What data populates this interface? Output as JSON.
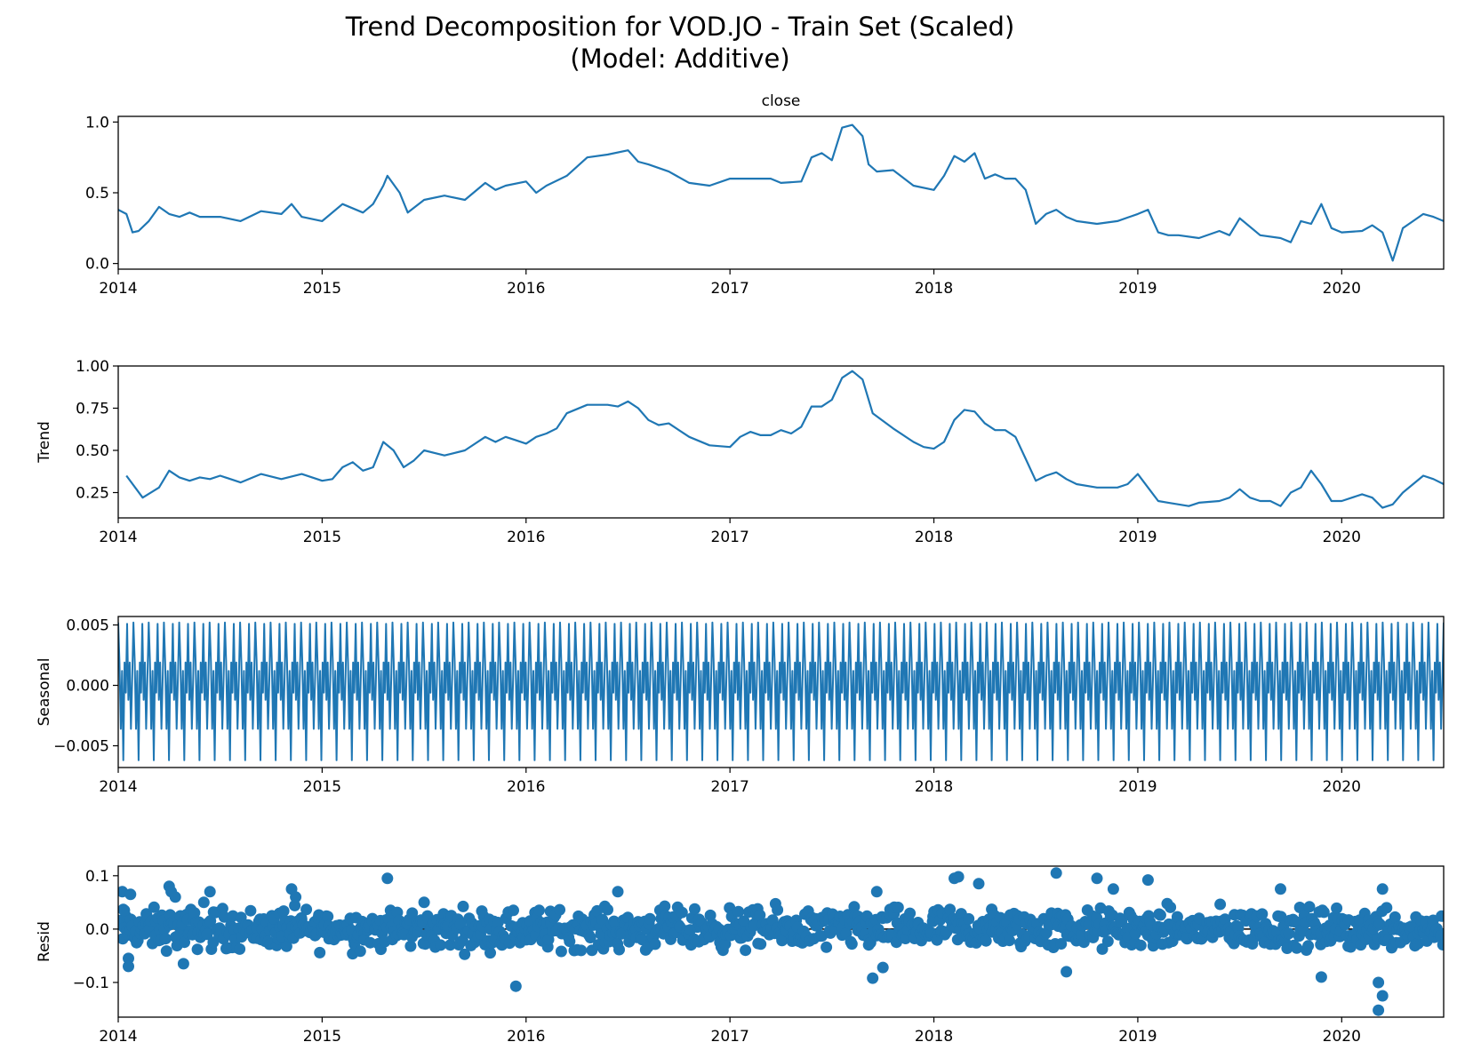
{
  "figure": {
    "title_line1": "Trend Decomposition for VOD.JO - Train Set (Scaled)",
    "title_line2": "(Model: Additive)",
    "line_color": "#1f77b4"
  },
  "chart_data": [
    {
      "type": "line",
      "title": "close",
      "ylabel": "",
      "xlim": [
        2014.0,
        2020.5
      ],
      "ylim": [
        -0.04,
        1.04
      ],
      "x_ticks": [
        "2014",
        "2015",
        "2016",
        "2017",
        "2018",
        "2019",
        "2020"
      ],
      "y_ticks": [
        "0.0",
        "0.5",
        "1.0"
      ],
      "y_tick_values": [
        0.0,
        0.5,
        1.0
      ],
      "series": [
        {
          "x": [
            2014.0,
            2014.04,
            2014.07,
            2014.1,
            2014.15,
            2014.2,
            2014.25,
            2014.3,
            2014.35,
            2014.4,
            2014.5,
            2014.6,
            2014.7,
            2014.8,
            2014.85,
            2014.9,
            2015.0,
            2015.1,
            2015.2,
            2015.25,
            2015.3,
            2015.32,
            2015.38,
            2015.42,
            2015.5,
            2015.6,
            2015.7,
            2015.8,
            2015.85,
            2015.9,
            2016.0,
            2016.05,
            2016.1,
            2016.2,
            2016.3,
            2016.4,
            2016.5,
            2016.55,
            2016.6,
            2016.7,
            2016.8,
            2016.9,
            2017.0,
            2017.1,
            2017.2,
            2017.25,
            2017.35,
            2017.4,
            2017.45,
            2017.5,
            2017.55,
            2017.6,
            2017.65,
            2017.68,
            2017.72,
            2017.8,
            2017.9,
            2018.0,
            2018.05,
            2018.1,
            2018.15,
            2018.2,
            2018.25,
            2018.3,
            2018.35,
            2018.4,
            2018.45,
            2018.5,
            2018.55,
            2018.6,
            2018.65,
            2018.7,
            2018.8,
            2018.9,
            2019.0,
            2019.05,
            2019.1,
            2019.15,
            2019.2,
            2019.3,
            2019.4,
            2019.45,
            2019.5,
            2019.6,
            2019.7,
            2019.75,
            2019.8,
            2019.85,
            2019.9,
            2019.95,
            2020.0,
            2020.1,
            2020.15,
            2020.2,
            2020.25,
            2020.3,
            2020.35,
            2020.4,
            2020.45,
            2020.5
          ],
          "y": [
            0.38,
            0.35,
            0.22,
            0.23,
            0.3,
            0.4,
            0.35,
            0.33,
            0.36,
            0.33,
            0.33,
            0.3,
            0.37,
            0.35,
            0.42,
            0.33,
            0.3,
            0.42,
            0.36,
            0.42,
            0.55,
            0.62,
            0.5,
            0.36,
            0.45,
            0.48,
            0.45,
            0.57,
            0.52,
            0.55,
            0.58,
            0.5,
            0.55,
            0.62,
            0.75,
            0.77,
            0.8,
            0.72,
            0.7,
            0.65,
            0.57,
            0.55,
            0.6,
            0.6,
            0.6,
            0.57,
            0.58,
            0.75,
            0.78,
            0.73,
            0.96,
            0.98,
            0.9,
            0.7,
            0.65,
            0.66,
            0.55,
            0.52,
            0.62,
            0.76,
            0.72,
            0.78,
            0.6,
            0.63,
            0.6,
            0.6,
            0.52,
            0.28,
            0.35,
            0.38,
            0.33,
            0.3,
            0.28,
            0.3,
            0.35,
            0.38,
            0.22,
            0.2,
            0.2,
            0.18,
            0.23,
            0.2,
            0.32,
            0.2,
            0.18,
            0.15,
            0.3,
            0.28,
            0.42,
            0.25,
            0.22,
            0.23,
            0.27,
            0.22,
            0.02,
            0.25,
            0.3,
            0.35,
            0.33,
            0.3
          ]
        }
      ]
    },
    {
      "type": "line",
      "title": "",
      "ylabel": "Trend",
      "xlim": [
        2014.0,
        2020.5
      ],
      "ylim": [
        0.1,
        1.0
      ],
      "x_ticks": [
        "2014",
        "2015",
        "2016",
        "2017",
        "2018",
        "2019",
        "2020"
      ],
      "y_ticks": [
        "0.25",
        "0.50",
        "0.75",
        "1.00"
      ],
      "y_tick_values": [
        0.25,
        0.5,
        0.75,
        1.0
      ],
      "series": [
        {
          "x": [
            2014.04,
            2014.12,
            2014.2,
            2014.25,
            2014.3,
            2014.35,
            2014.4,
            2014.45,
            2014.5,
            2014.6,
            2014.7,
            2014.8,
            2014.9,
            2015.0,
            2015.05,
            2015.1,
            2015.15,
            2015.2,
            2015.25,
            2015.3,
            2015.35,
            2015.4,
            2015.45,
            2015.5,
            2015.6,
            2015.7,
            2015.8,
            2015.85,
            2015.9,
            2015.95,
            2016.0,
            2016.05,
            2016.1,
            2016.15,
            2016.2,
            2016.3,
            2016.35,
            2016.4,
            2016.45,
            2016.5,
            2016.55,
            2016.6,
            2016.65,
            2016.7,
            2016.8,
            2016.9,
            2017.0,
            2017.05,
            2017.1,
            2017.15,
            2017.2,
            2017.25,
            2017.3,
            2017.35,
            2017.4,
            2017.45,
            2017.5,
            2017.55,
            2017.6,
            2017.65,
            2017.7,
            2017.8,
            2017.9,
            2017.95,
            2018.0,
            2018.05,
            2018.1,
            2018.15,
            2018.2,
            2018.25,
            2018.3,
            2018.35,
            2018.4,
            2018.45,
            2018.5,
            2018.55,
            2018.6,
            2018.65,
            2018.7,
            2018.8,
            2018.9,
            2018.95,
            2019.0,
            2019.05,
            2019.1,
            2019.15,
            2019.2,
            2019.25,
            2019.3,
            2019.4,
            2019.45,
            2019.5,
            2019.55,
            2019.6,
            2019.65,
            2019.7,
            2019.75,
            2019.8,
            2019.85,
            2019.9,
            2019.95,
            2020.0,
            2020.05,
            2020.1,
            2020.15,
            2020.2,
            2020.25,
            2020.3,
            2020.35,
            2020.4,
            2020.45,
            2020.5
          ],
          "y": [
            0.35,
            0.22,
            0.28,
            0.38,
            0.34,
            0.32,
            0.34,
            0.33,
            0.35,
            0.31,
            0.36,
            0.33,
            0.36,
            0.32,
            0.33,
            0.4,
            0.43,
            0.38,
            0.4,
            0.55,
            0.5,
            0.4,
            0.44,
            0.5,
            0.47,
            0.5,
            0.58,
            0.55,
            0.58,
            0.56,
            0.54,
            0.58,
            0.6,
            0.63,
            0.72,
            0.77,
            0.77,
            0.77,
            0.76,
            0.79,
            0.75,
            0.68,
            0.65,
            0.66,
            0.58,
            0.53,
            0.52,
            0.58,
            0.61,
            0.59,
            0.59,
            0.62,
            0.6,
            0.64,
            0.76,
            0.76,
            0.8,
            0.93,
            0.97,
            0.92,
            0.72,
            0.63,
            0.55,
            0.52,
            0.51,
            0.55,
            0.68,
            0.74,
            0.73,
            0.66,
            0.62,
            0.62,
            0.58,
            0.45,
            0.32,
            0.35,
            0.37,
            0.33,
            0.3,
            0.28,
            0.28,
            0.3,
            0.36,
            0.28,
            0.2,
            0.19,
            0.18,
            0.17,
            0.19,
            0.2,
            0.22,
            0.27,
            0.22,
            0.2,
            0.2,
            0.17,
            0.25,
            0.28,
            0.38,
            0.3,
            0.2,
            0.2,
            0.22,
            0.24,
            0.22,
            0.16,
            0.18,
            0.25,
            0.3,
            0.35,
            0.33,
            0.3
          ]
        }
      ]
    },
    {
      "type": "line",
      "title": "",
      "ylabel": "Seasonal",
      "xlim": [
        2014.0,
        2020.5
      ],
      "ylim": [
        -0.0068,
        0.0057
      ],
      "x_ticks": [
        "2014",
        "2015",
        "2016",
        "2017",
        "2018",
        "2019",
        "2020"
      ],
      "y_ticks": [
        "0.005",
        "0.000",
        "−0.005"
      ],
      "y_tick_values": [
        0.005,
        0.0,
        -0.005
      ],
      "series": [
        {
          "pattern_note": "",
          "cycles": 87,
          "cycle_values": [
            0.0052,
            0.0019,
            -0.0036,
            0.0012,
            -0.0062,
            0.0019,
            -0.0006,
            0.0051,
            -0.0012,
            0.0019,
            -0.0036,
            0.0005
          ]
        }
      ]
    },
    {
      "type": "scatter",
      "title": "",
      "ylabel": "Resid",
      "xlim": [
        2014.0,
        2020.5
      ],
      "ylim": [
        -0.165,
        0.118
      ],
      "x_ticks": [
        "2014",
        "2015",
        "2016",
        "2017",
        "2018",
        "2019",
        "2020"
      ],
      "y_ticks": [
        "0.1",
        "0.0",
        "−0.1"
      ],
      "y_tick_values": [
        0.1,
        0.0,
        -0.1
      ],
      "series": [
        {
          "x": [
            2014.02,
            2014.03,
            2014.05,
            2014.05,
            2014.06,
            2014.25,
            2014.26,
            2014.28,
            2014.32,
            2014.42,
            2014.45,
            2014.85,
            2014.87,
            2015.32,
            2015.5,
            2015.95,
            2016.45,
            2017.7,
            2017.72,
            2017.75,
            2018.1,
            2018.12,
            2018.22,
            2018.6,
            2018.65,
            2018.8,
            2018.88,
            2019.05,
            2019.7,
            2019.9,
            2020.18,
            2020.18,
            2020.2,
            2020.2,
            2020.22
          ],
          "y": [
            0.07,
            0.035,
            -0.055,
            -0.07,
            0.065,
            0.08,
            0.07,
            0.06,
            -0.065,
            0.05,
            0.07,
            0.075,
            0.06,
            0.095,
            0.05,
            -0.107,
            0.07,
            -0.092,
            0.07,
            -0.072,
            0.095,
            0.098,
            0.085,
            0.105,
            -0.08,
            0.095,
            0.075,
            0.092,
            0.075,
            -0.09,
            -0.1,
            -0.152,
            -0.125,
            0.075,
            0.04
          ],
          "dense_band": [
            -0.05,
            0.05
          ],
          "dense_count": 1100
        }
      ]
    }
  ]
}
